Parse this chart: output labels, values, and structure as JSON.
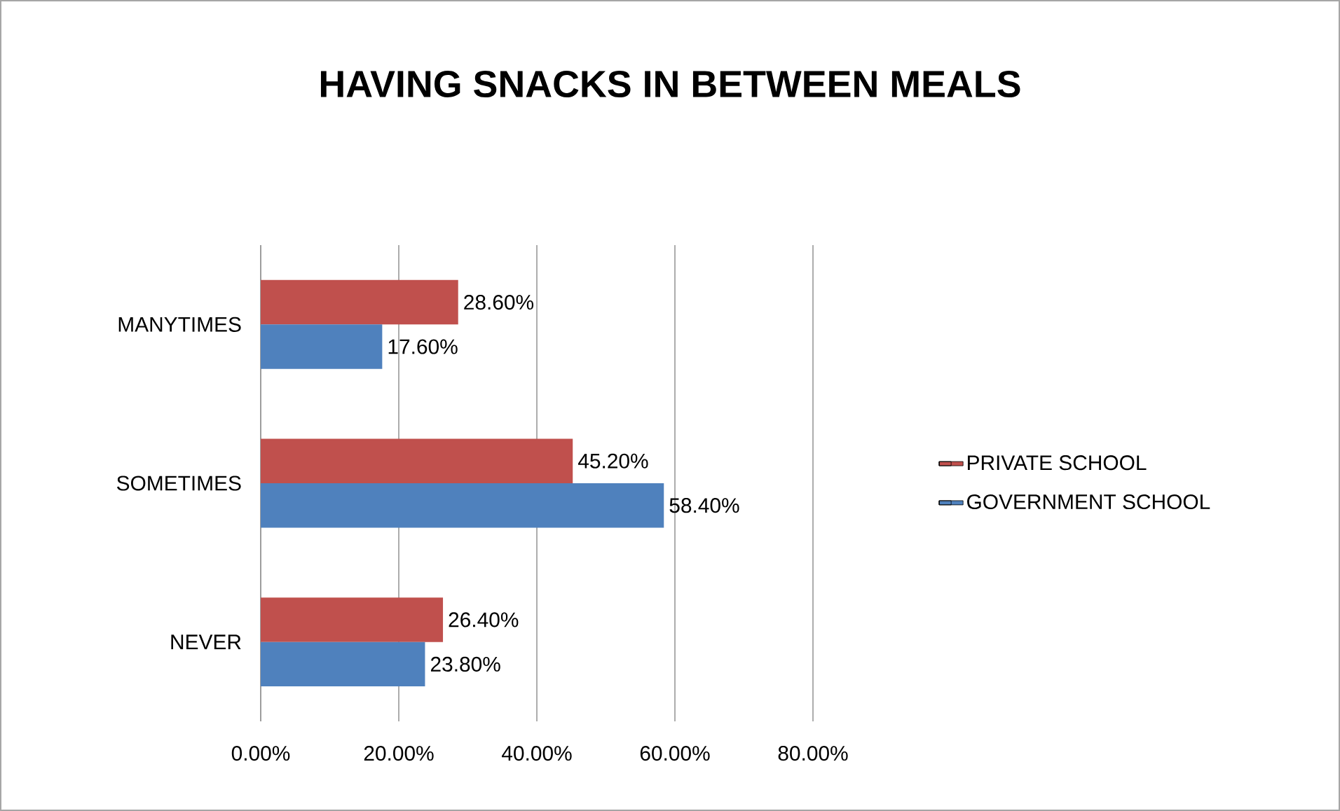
{
  "chart_data": {
    "type": "bar",
    "orientation": "horizontal",
    "title": "HAVING SNACKS IN BETWEEN MEALS",
    "categories": [
      "MANYTIMES",
      "SOMETIMES",
      "NEVER"
    ],
    "series": [
      {
        "name": "PRIVATE SCHOOL",
        "color": "#c0504d",
        "values": [
          28.6,
          45.2,
          26.4
        ],
        "value_labels": [
          "28.60%",
          "45.20%",
          "26.40%"
        ]
      },
      {
        "name": "GOVERNMENT SCHOOL",
        "color": "#4f81bd",
        "values": [
          17.6,
          58.4,
          23.8
        ],
        "value_labels": [
          "17.60%",
          "58.40%",
          "23.80%"
        ]
      }
    ],
    "xlim": [
      0,
      80
    ],
    "xticks": [
      {
        "value": 0,
        "label": "0.00%"
      },
      {
        "value": 20,
        "label": "20.00%"
      },
      {
        "value": 40,
        "label": "40.00%"
      },
      {
        "value": 60,
        "label": "60.00%"
      },
      {
        "value": 80,
        "label": "80.00%"
      }
    ],
    "grid": "x",
    "legend": "right"
  }
}
